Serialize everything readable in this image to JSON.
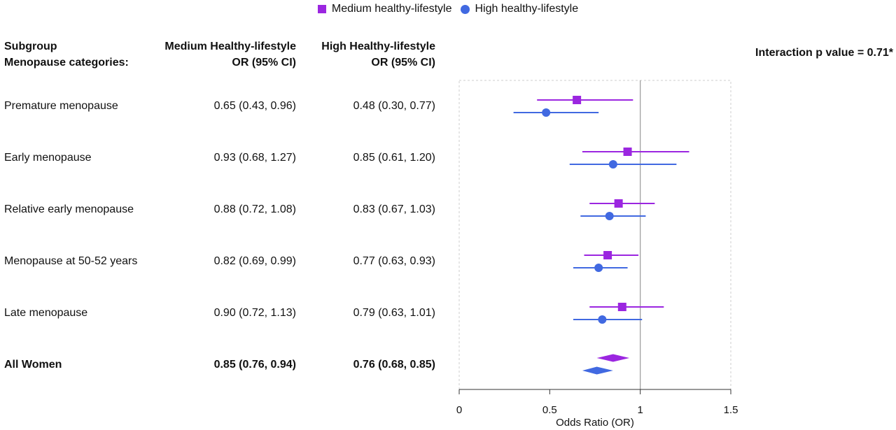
{
  "legend": {
    "medium_label": "Medium healthy-lifestyle",
    "high_label": "High healthy-lifestyle"
  },
  "headers": {
    "subgroup": "Subgroup",
    "category": "Menopause categories:",
    "medium_title": "Medium Healthy-lifestyle",
    "medium_sub": "OR (95% CI)",
    "high_title": "High Healthy-lifestyle",
    "high_sub": "OR (95% CI)"
  },
  "interaction_text": "Interaction p value = 0.71*",
  "rows": [
    {
      "label": "Premature menopause",
      "medium_text": "0.65 (0.43, 0.96)",
      "high_text": "0.48 (0.30, 0.77)"
    },
    {
      "label": "Early menopause",
      "medium_text": "0.93 (0.68, 1.27)",
      "high_text": "0.85 (0.61, 1.20)"
    },
    {
      "label": "Relative early menopause",
      "medium_text": "0.88 (0.72, 1.08)",
      "high_text": "0.83 (0.67, 1.03)"
    },
    {
      "label": "Menopause at 50-52 years",
      "medium_text": "0.82 (0.69, 0.99)",
      "high_text": "0.77 (0.63, 0.93)"
    },
    {
      "label": "Late menopause",
      "medium_text": "0.90 (0.72, 1.13)",
      "high_text": "0.79 (0.63, 1.01)"
    },
    {
      "label": "All Women",
      "medium_text": "0.85 (0.76, 0.94)",
      "high_text": "0.76 (0.68, 0.85)"
    }
  ],
  "colors": {
    "medium": "#9b26e0",
    "high": "#4169e1"
  },
  "chart_data": {
    "type": "forest",
    "xlabel": "Odds Ratio (OR)",
    "xlim": [
      0,
      1.5
    ],
    "xticks": [
      "0",
      "0.5",
      "1",
      "1.5"
    ],
    "reference_line": 1,
    "categories": [
      "Premature menopause",
      "Early menopause",
      "Relative early menopause",
      "Menopause at 50-52 years",
      "Late menopause",
      "All Women"
    ],
    "summary_row": "All Women",
    "series": [
      {
        "name": "Medium healthy-lifestyle",
        "marker": "square",
        "or": [
          0.65,
          0.93,
          0.88,
          0.82,
          0.9,
          0.85
        ],
        "lower": [
          0.43,
          0.68,
          0.72,
          0.69,
          0.72,
          0.76
        ],
        "upper": [
          0.96,
          1.27,
          1.08,
          0.99,
          1.13,
          0.94
        ]
      },
      {
        "name": "High healthy-lifestyle",
        "marker": "circle",
        "or": [
          0.48,
          0.85,
          0.83,
          0.77,
          0.79,
          0.76
        ],
        "lower": [
          0.3,
          0.61,
          0.67,
          0.63,
          0.63,
          0.68
        ],
        "upper": [
          0.77,
          1.2,
          1.03,
          0.93,
          1.01,
          0.85
        ]
      }
    ]
  }
}
